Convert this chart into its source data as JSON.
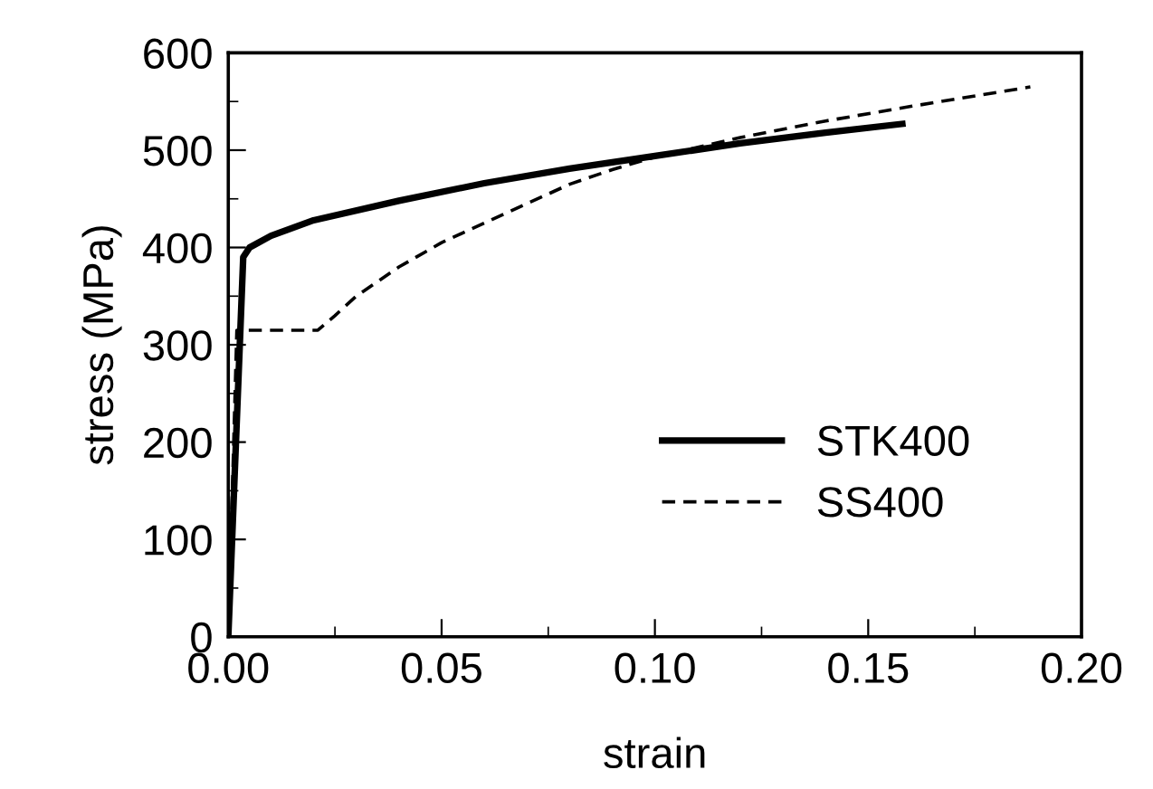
{
  "chart_data": {
    "type": "line",
    "xlabel": "strain",
    "ylabel": "stress (MPa)",
    "xlim": [
      0,
      0.2
    ],
    "ylim": [
      0,
      600
    ],
    "xticks": [
      {
        "value": 0,
        "label": "0.00"
      },
      0.05,
      {
        "value": 0.1,
        "label": "0.10"
      },
      0.15,
      {
        "value": 0.2,
        "label": "0.20"
      }
    ],
    "yticks": [
      0,
      100,
      200,
      300,
      400,
      500,
      600
    ],
    "legend": "bottom right",
    "grid": false,
    "marker": "none",
    "series": [
      {
        "name": "STK400",
        "color": "#000000",
        "line_style": "solid",
        "x": [
          0,
          0.0035,
          0.005,
          0.01,
          0.02,
          0.04,
          0.06,
          0.08,
          0.1,
          0.12,
          0.14,
          0.158
        ],
        "values": [
          0,
          390,
          400,
          412,
          428,
          448,
          466,
          481,
          494,
          507,
          518,
          527
        ]
      },
      {
        "name": "SS400",
        "color": "#000000",
        "line_style": "dashed",
        "x": [
          0,
          0.002,
          0.021,
          0.025,
          0.03,
          0.04,
          0.05,
          0.06,
          0.07,
          0.08,
          0.09,
          0.1,
          0.12,
          0.14,
          0.16,
          0.188
        ],
        "values": [
          0,
          315,
          315,
          330,
          350,
          380,
          405,
          425,
          445,
          465,
          480,
          493,
          513,
          530,
          545,
          565
        ]
      }
    ]
  }
}
